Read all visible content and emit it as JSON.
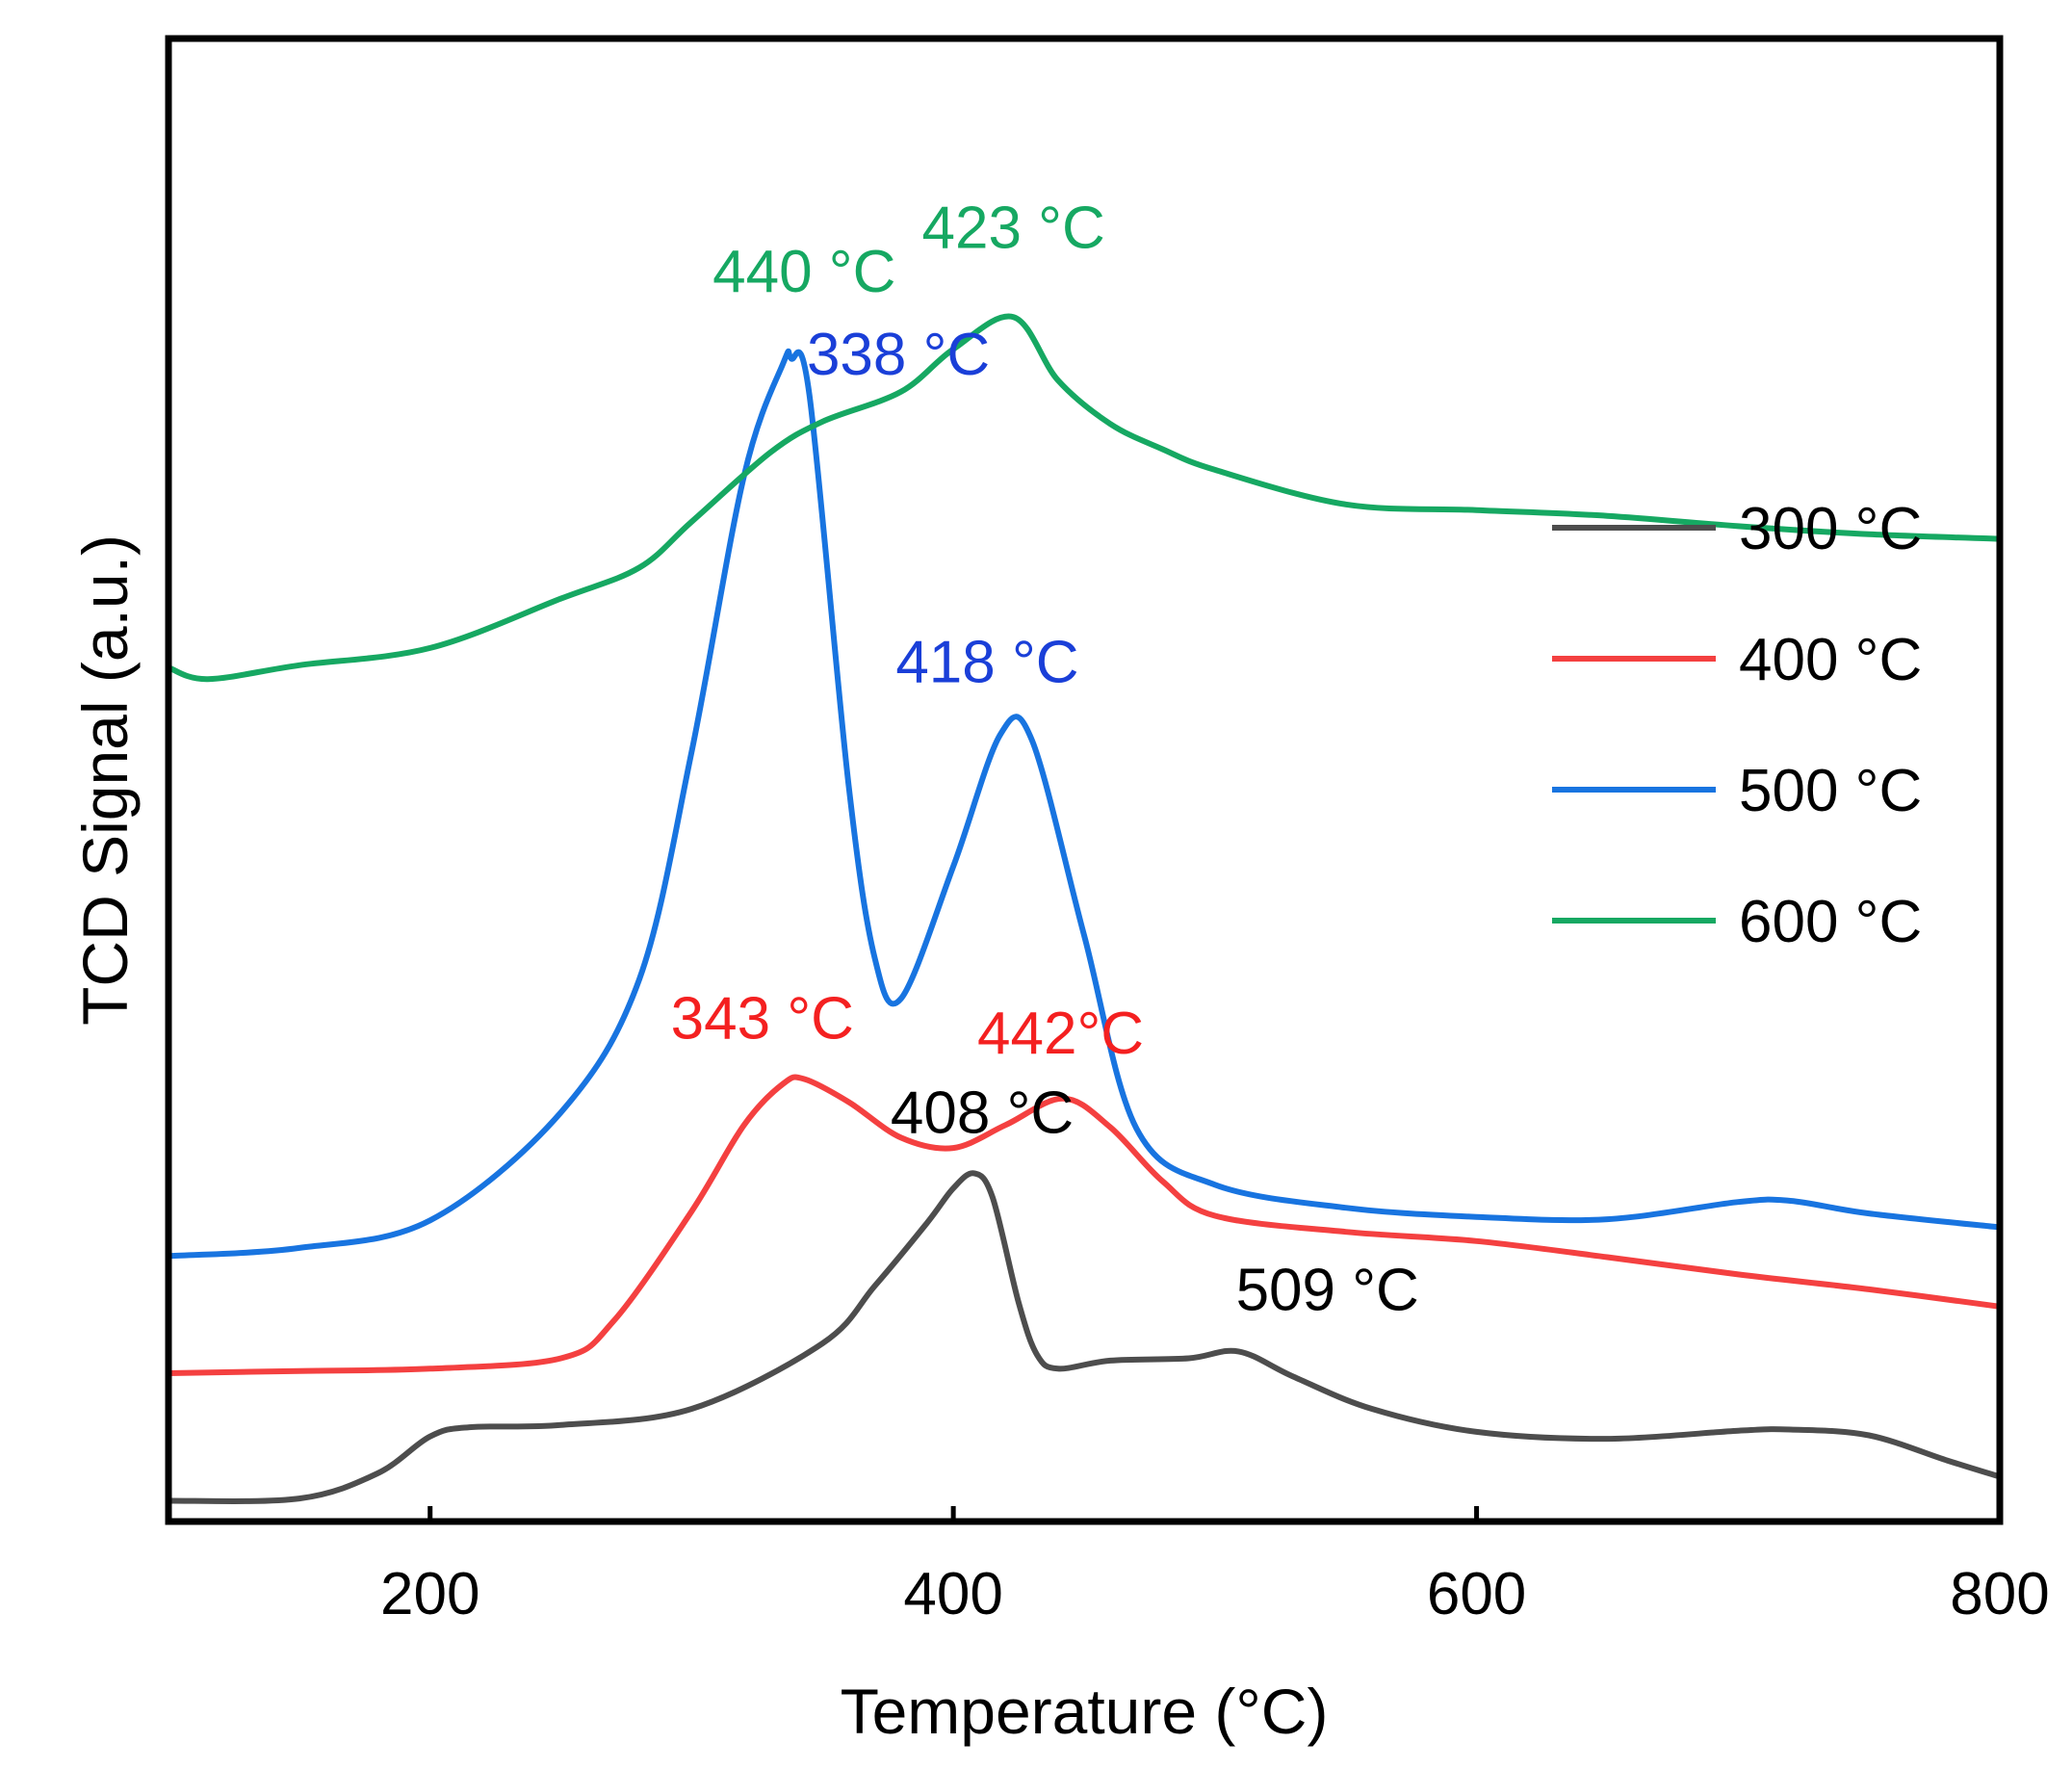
{
  "chart_data": {
    "type": "line",
    "title": "",
    "xlabel": "Temperature (°C)",
    "ylabel": "TCD Signal (a.u.)",
    "xlim": [
      100,
      800
    ],
    "ylim": [
      0,
      10
    ],
    "xticks": [
      200,
      400,
      600,
      800
    ],
    "xtick_labels": [
      "200",
      "400",
      "600",
      "800"
    ],
    "grid": false,
    "legend_position": "right",
    "series": [
      {
        "name": "300 °C",
        "color": "#4d4d4d",
        "x": [
          100,
          150,
          180,
          200,
          215,
          250,
          300,
          350,
          370,
          390,
          400,
          408,
          415,
          425,
          432,
          440,
          460,
          490,
          509,
          530,
          560,
          600,
          650,
          700,
          720,
          750,
          780,
          800
        ],
        "y": [
          0.18,
          0.2,
          0.42,
          0.74,
          0.82,
          0.84,
          0.98,
          1.55,
          2.05,
          2.6,
          2.9,
          3.03,
          2.82,
          1.9,
          1.45,
          1.33,
          1.4,
          1.42,
          1.48,
          1.26,
          0.98,
          0.78,
          0.72,
          0.79,
          0.8,
          0.75,
          0.53,
          0.39
        ]
      },
      {
        "name": "400 °C",
        "color": "#f44040",
        "x": [
          100,
          150,
          200,
          250,
          270,
          300,
          320,
          335,
          343,
          360,
          380,
          400,
          420,
          442,
          460,
          480,
          500,
          550,
          600,
          650,
          700,
          750,
          800
        ],
        "y": [
          1.29,
          1.31,
          1.33,
          1.42,
          1.74,
          2.7,
          3.45,
          3.81,
          3.85,
          3.65,
          3.34,
          3.25,
          3.45,
          3.68,
          3.43,
          2.96,
          2.66,
          2.52,
          2.44,
          2.3,
          2.15,
          2.02,
          1.87
        ]
      },
      {
        "name": "500 °C",
        "color": "#1874e0",
        "x": [
          100,
          150,
          200,
          250,
          280,
          300,
          320,
          335,
          338,
          345,
          360,
          370,
          380,
          400,
          418,
          430,
          450,
          470,
          500,
          550,
          600,
          650,
          700,
          720,
          750,
          800
        ],
        "y": [
          2.31,
          2.38,
          2.62,
          3.56,
          4.72,
          6.7,
          9.1,
          10.08,
          10.12,
          9.8,
          6.4,
          4.9,
          4.55,
          5.7,
          6.85,
          6.8,
          5.1,
          3.42,
          2.93,
          2.73,
          2.65,
          2.63,
          2.78,
          2.79,
          2.68,
          2.56
        ]
      },
      {
        "name": "600 °C",
        "color": "#16a862",
        "x": [
          100,
          115,
          150,
          200,
          250,
          280,
          300,
          330,
          350,
          380,
          400,
          423,
          440,
          460,
          480,
          500,
          550,
          600,
          650,
          700,
          750,
          800
        ],
        "y": [
          7.43,
          7.33,
          7.45,
          7.6,
          8.03,
          8.3,
          8.7,
          9.3,
          9.57,
          9.83,
          10.2,
          10.48,
          9.93,
          9.55,
          9.33,
          9.15,
          8.85,
          8.8,
          8.75,
          8.66,
          8.59,
          8.55
        ]
      }
    ],
    "annotations": [
      {
        "text": "423 °C",
        "color": "#16a862",
        "x": 423,
        "y": 11.08
      },
      {
        "text": "440 °C",
        "color": "#16a862",
        "x": 343,
        "y": 10.7
      },
      {
        "text": "338 °C",
        "color": "#1a3fd8",
        "x": 379,
        "y": 9.98
      },
      {
        "text": "418 °C",
        "color": "#1a3fd8",
        "x": 413,
        "y": 7.3
      },
      {
        "text": "343 °C",
        "color": "#f42020",
        "x": 327,
        "y": 4.2
      },
      {
        "text": "442°C",
        "color": "#f42020",
        "x": 441,
        "y": 4.07
      },
      {
        "text": "408 °C",
        "color": "#000000",
        "x": 411,
        "y": 3.38
      },
      {
        "text": "509 °C",
        "color": "#000000",
        "x": 543,
        "y": 1.84
      }
    ]
  }
}
